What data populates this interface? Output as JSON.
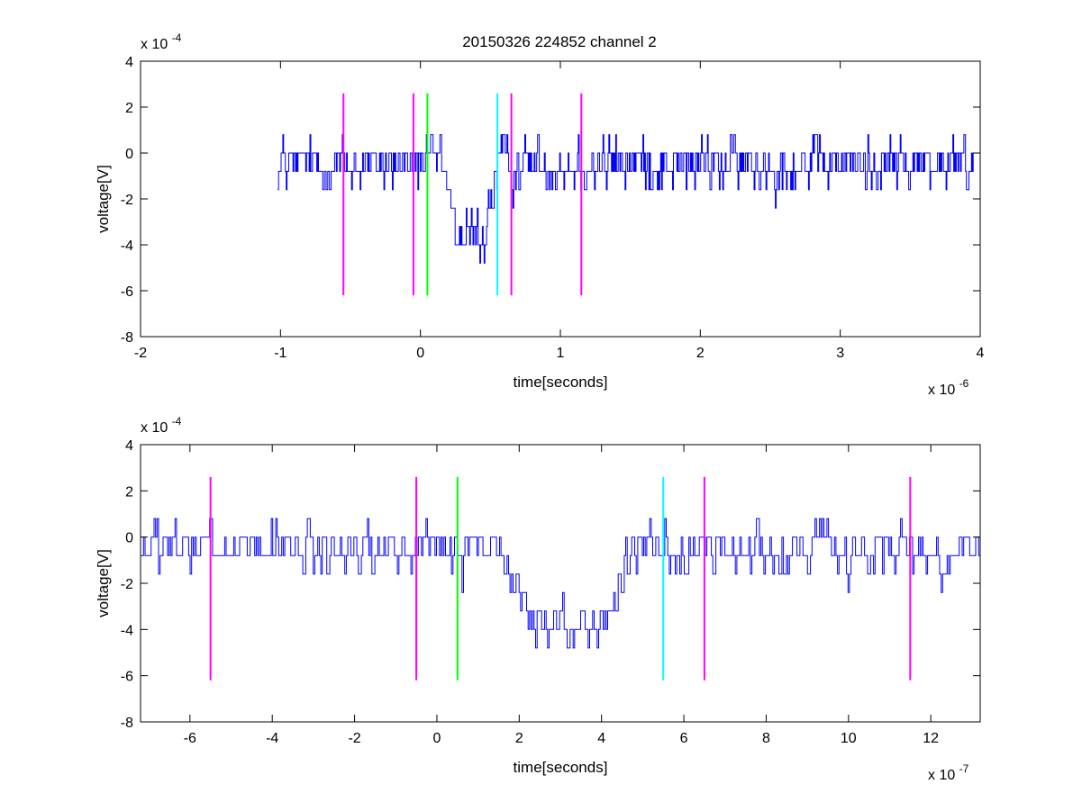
{
  "figure": {
    "title": "20150326 224852 channel 2",
    "background": "#ffffff"
  },
  "chart_data": [
    {
      "type": "line",
      "title": "20150326 224852 channel 2",
      "xlabel": "time[seconds]",
      "ylabel": "voltage[V]",
      "x_exponent_label": "x 10",
      "x_exponent": "-6",
      "y_exponent_label": "x 10",
      "y_exponent": "-4",
      "xlim": [
        -2,
        4
      ],
      "ylim": [
        -8,
        4
      ],
      "xticks": [
        -2,
        -1,
        0,
        1,
        2,
        3,
        4
      ],
      "yticks": [
        -8,
        -6,
        -4,
        -2,
        0,
        2,
        4
      ],
      "xtick_labels": [
        "-2",
        "-1",
        "0",
        "1",
        "2",
        "3",
        "4"
      ],
      "ytick_labels": [
        "-8",
        "-6",
        "-4",
        "-2",
        "0",
        "2",
        "4"
      ],
      "grid": false,
      "series": [
        {
          "color": "#0000ff",
          "x_start": -1.02,
          "x_end": 3.95,
          "quantization_step": 0.8,
          "noise_level_range": [
            -3.2,
            2.4
          ],
          "dip": {
            "x_start": 0.15,
            "x_end": 0.55,
            "min": -5.6,
            "mean_level": -3.6
          },
          "baseline": -0.5
        }
      ],
      "markers": [
        {
          "x": -0.55,
          "color": "#ff00ff",
          "ymin": -6.2,
          "ymax": 2.6
        },
        {
          "x": -0.05,
          "color": "#ff00ff",
          "ymin": -6.2,
          "ymax": 2.6
        },
        {
          "x": 0.05,
          "color": "#00ff00",
          "ymin": -6.2,
          "ymax": 2.6
        },
        {
          "x": 0.55,
          "color": "#00ffff",
          "ymin": -6.2,
          "ymax": 2.6
        },
        {
          "x": 0.65,
          "color": "#ff00ff",
          "ymin": -6.2,
          "ymax": 2.6
        },
        {
          "x": 1.15,
          "color": "#ff00ff",
          "ymin": -6.2,
          "ymax": 2.6
        }
      ]
    },
    {
      "type": "line",
      "title": "",
      "xlabel": "time[seconds]",
      "ylabel": "voltage[V]",
      "x_exponent_label": "x 10",
      "x_exponent": "-7",
      "y_exponent_label": "x 10",
      "y_exponent": "-4",
      "xlim": [
        -7.2,
        13.2
      ],
      "ylim": [
        -8,
        4
      ],
      "xticks": [
        -6,
        -4,
        -2,
        0,
        2,
        4,
        6,
        8,
        10,
        12
      ],
      "yticks": [
        -8,
        -6,
        -4,
        -2,
        0,
        2,
        4
      ],
      "xtick_labels": [
        "-6",
        "-4",
        "-2",
        "0",
        "2",
        "4",
        "6",
        "8",
        "10",
        "12"
      ],
      "ytick_labels": [
        "-8",
        "-6",
        "-4",
        "-2",
        "0",
        "2",
        "4"
      ],
      "grid": false,
      "series": [
        {
          "color": "#0000ff",
          "x_start": -7.2,
          "x_end": 13.2,
          "quantization_step": 0.8,
          "noise_level_range": [
            -3.2,
            2.4
          ],
          "dip": {
            "x_start": 1.5,
            "x_end": 4.8,
            "min": -5.6,
            "mean_level": -3.8
          },
          "baseline": -0.6
        }
      ],
      "markers": [
        {
          "x": -5.5,
          "color": "#ff00ff",
          "ymin": -6.2,
          "ymax": 2.6
        },
        {
          "x": -0.5,
          "color": "#ff00ff",
          "ymin": -6.2,
          "ymax": 2.6
        },
        {
          "x": 0.5,
          "color": "#00ff00",
          "ymin": -6.2,
          "ymax": 2.6
        },
        {
          "x": 5.5,
          "color": "#00ffff",
          "ymin": -6.2,
          "ymax": 2.6
        },
        {
          "x": 6.5,
          "color": "#ff00ff",
          "ymin": -6.2,
          "ymax": 2.6
        },
        {
          "x": 11.5,
          "color": "#ff00ff",
          "ymin": -6.2,
          "ymax": 2.6
        }
      ]
    }
  ]
}
